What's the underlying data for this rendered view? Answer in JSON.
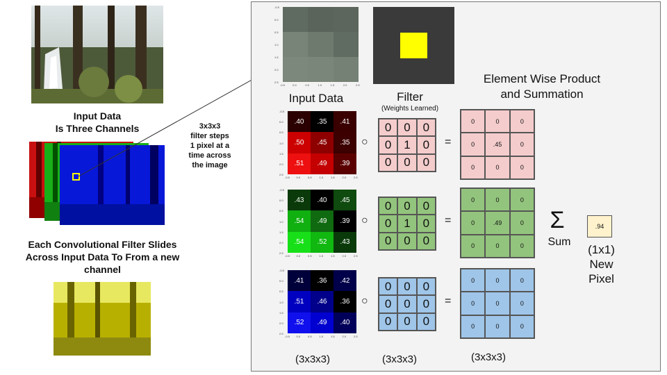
{
  "left": {
    "input_title_line1": "Input Data",
    "input_title_line2": "Is Three Channels",
    "filter_text": [
      "3x3x3",
      "filter steps",
      "1 pixel at a",
      "time across",
      "the image"
    ],
    "slide_text": [
      "Each Convolutional Filter Slides",
      "Across Input Data To From a new",
      "channel"
    ]
  },
  "panel": {
    "input_label": "Input Data",
    "filter_label": "Filter",
    "filter_sublabel": "(Weights Learned)",
    "product_label_line1": "Element Wise Product",
    "product_label_line2": "and Summation",
    "sum_symbol": "Σ",
    "sum_label": "Sum",
    "new_pixel_value": ".94",
    "new_pixel_label": [
      "(1x1)",
      "New",
      "Pixel"
    ],
    "dim_labels": [
      "(3x3x3)",
      "(3x3x3)",
      "(3x3x3)"
    ],
    "hadamard_symbol": "○",
    "equals_symbol": "="
  },
  "ticks": {
    "y": [
      "-0.5",
      "0.0",
      "0.5",
      "1.0",
      "1.5",
      "2.0",
      "2.5"
    ],
    "x": [
      "-0.5",
      "0.0",
      "0.5",
      "1.0",
      "1.5",
      "2.0",
      "2.5"
    ]
  },
  "channels": [
    {
      "name": "red",
      "input": [
        ".40",
        ".35",
        ".41",
        ".50",
        ".45",
        ".35",
        ".51",
        ".49",
        ".39"
      ],
      "colors": [
        "#2a0000",
        "#000000",
        "#3a0000",
        "#cc0000",
        "#8e0000",
        "#3c0000",
        "#ee1010",
        "#c40000",
        "#5a0000"
      ],
      "filter": [
        "0",
        "0",
        "0",
        "0",
        "1",
        "0",
        "0",
        "0",
        "0"
      ],
      "product": [
        "0",
        "0",
        "0",
        "0",
        ".45",
        "0",
        "0",
        "0",
        "0"
      ],
      "filter_bg": "#f4cccc",
      "product_bg": "#f4cccc"
    },
    {
      "name": "green",
      "input": [
        ".43",
        ".40",
        ".45",
        ".54",
        ".49",
        ".39",
        ".54",
        ".52",
        ".43"
      ],
      "colors": [
        "#0a3a0a",
        "#000000",
        "#0f4a0f",
        "#10b010",
        "#106a10",
        "#000000",
        "#18e018",
        "#10b810",
        "#0a3a0a"
      ],
      "filter": [
        "0",
        "0",
        "0",
        "0",
        "1",
        "0",
        "0",
        "0",
        "0"
      ],
      "product": [
        "0",
        "0",
        "0",
        "0",
        ".49",
        "0",
        "0",
        "0",
        "0"
      ],
      "filter_bg": "#93c47d",
      "product_bg": "#93c47d"
    },
    {
      "name": "blue",
      "input": [
        ".41",
        ".36",
        ".42",
        ".51",
        ".46",
        ".36",
        ".52",
        ".49",
        ".40"
      ],
      "colors": [
        "#00003a",
        "#000000",
        "#00004a",
        "#0000c0",
        "#00008a",
        "#000000",
        "#1010ee",
        "#0000d0",
        "#00005a"
      ],
      "filter": [
        "0",
        "0",
        "0",
        "0",
        "0",
        "0",
        "0",
        "0",
        "0"
      ],
      "product": [
        "0",
        "0",
        "0",
        "0",
        "0",
        "0",
        "0",
        "0",
        "0"
      ],
      "filter_bg": "#9fc5e8",
      "product_bg": "#9fc5e8"
    }
  ],
  "top_feature": {
    "colors": [
      "#5f6a60",
      "#5a645b",
      "#5c665d",
      "#788477",
      "#6e7a6e",
      "#606b61",
      "#7c887b",
      "#7a8679",
      "#758174"
    ]
  },
  "top_filter": {
    "colors": [
      "#3a3a3a",
      "#3a3a3a",
      "#3a3a3a",
      "#3a3a3a",
      "#ffff00",
      "#3a3a3a",
      "#3a3a3a",
      "#3a3a3a",
      "#3a3a3a"
    ]
  }
}
